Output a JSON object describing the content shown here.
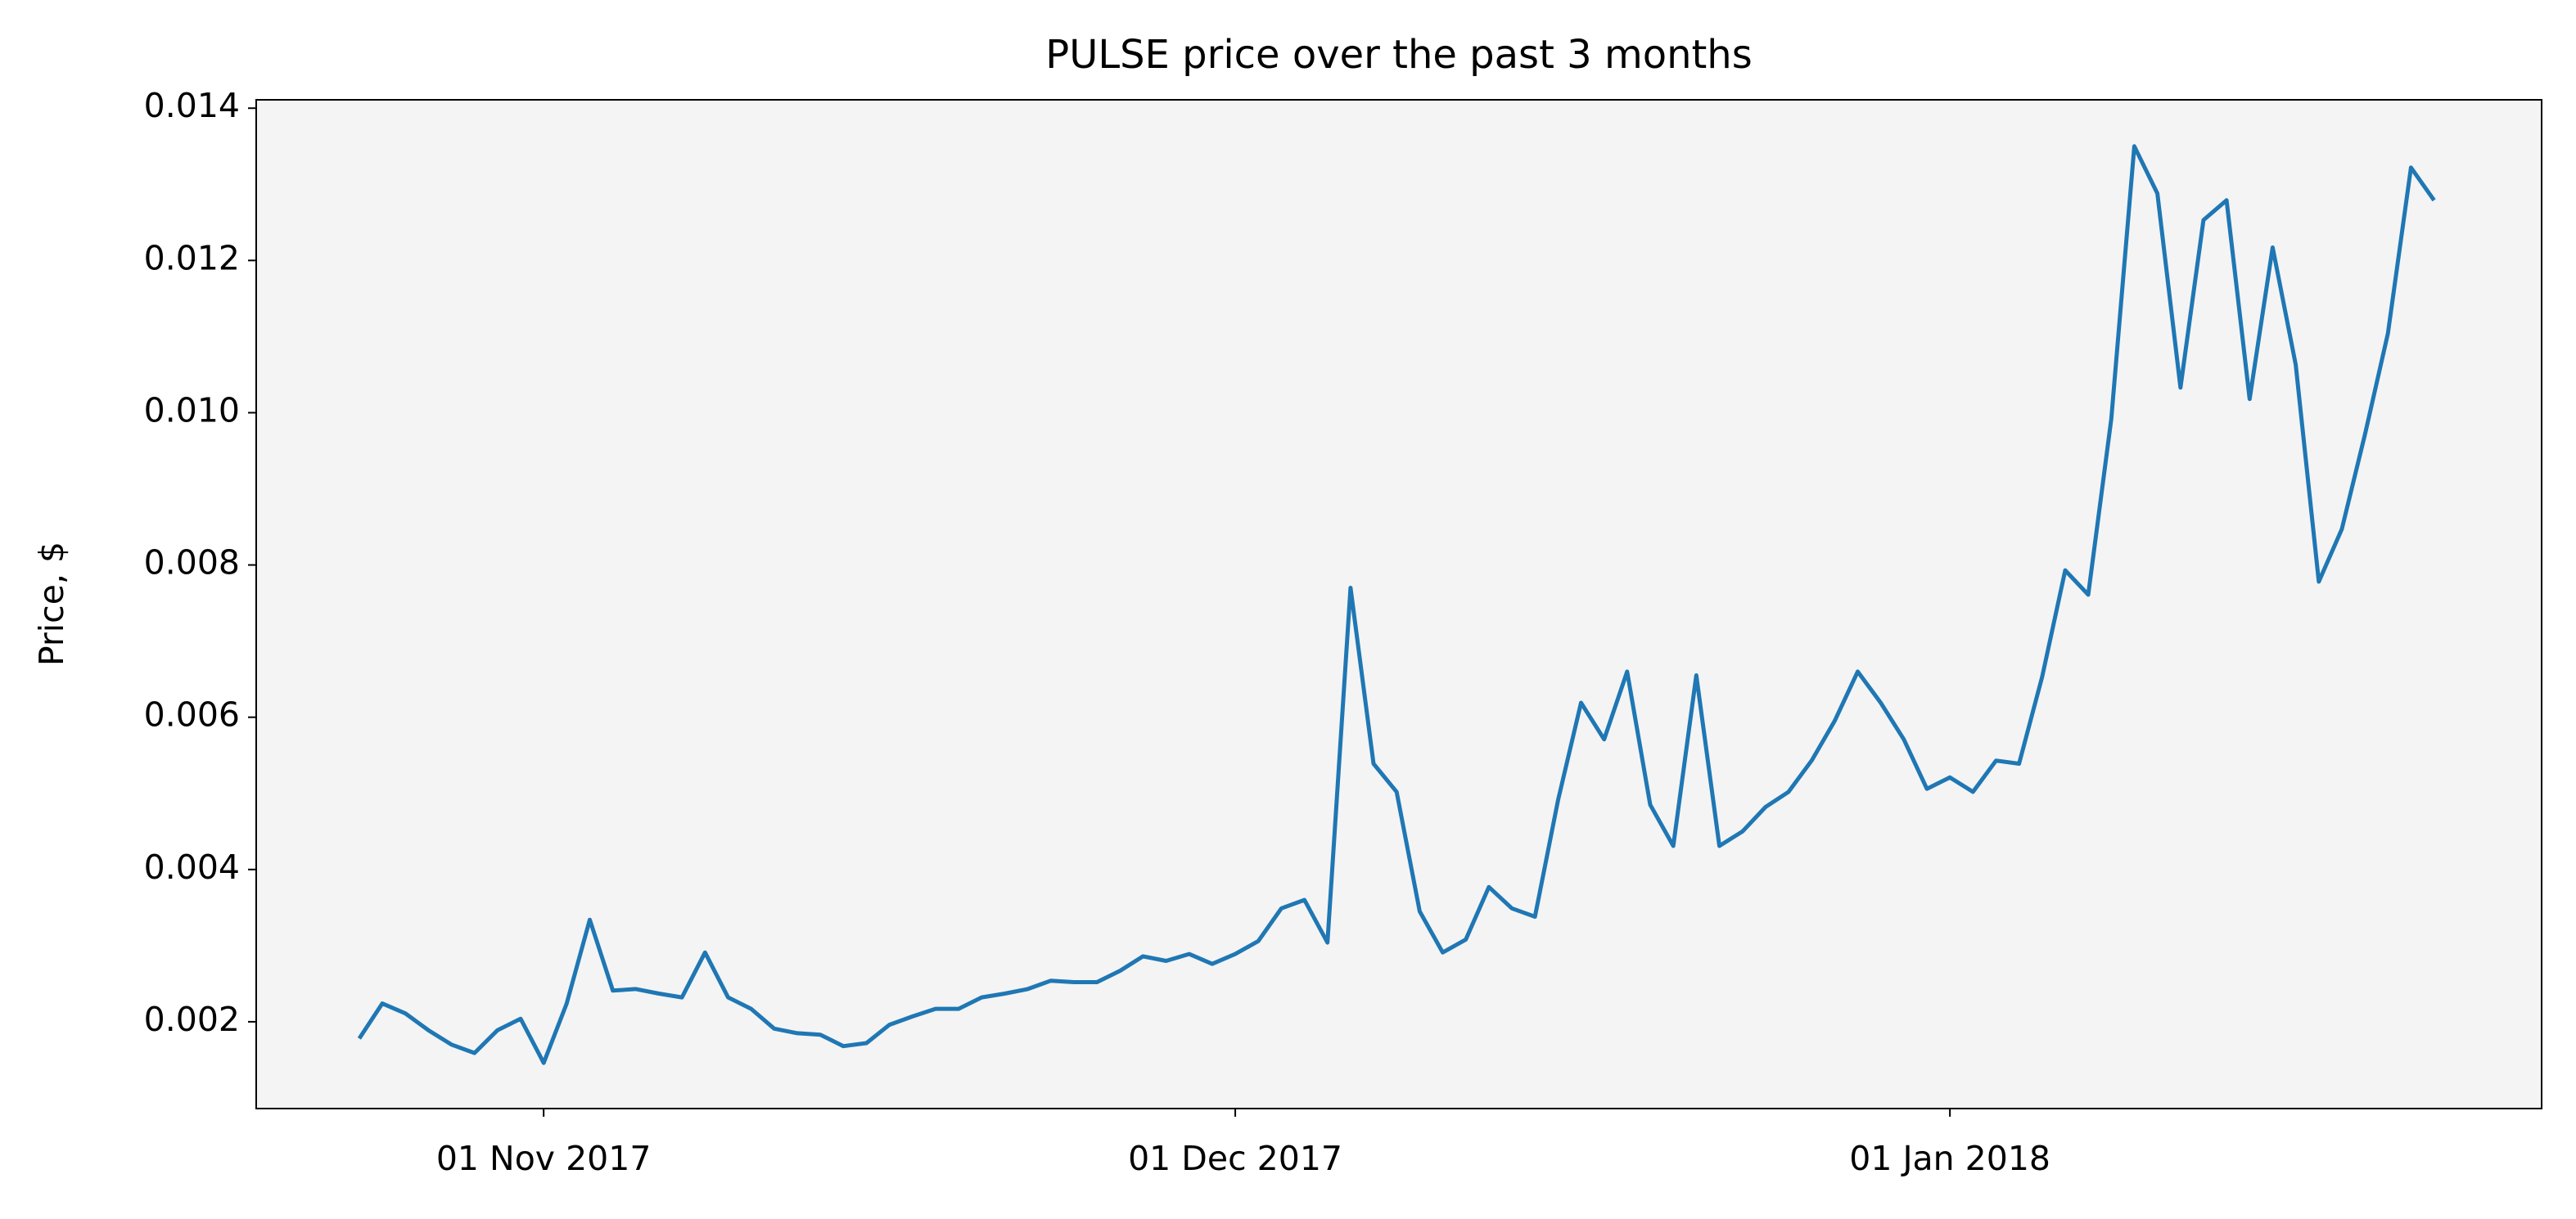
{
  "chart_data": {
    "type": "line",
    "title": "PULSE price over the past 3 months",
    "ylabel": "Price, $",
    "x": [
      "2017-10-24",
      "2017-10-25",
      "2017-10-26",
      "2017-10-27",
      "2017-10-28",
      "2017-10-29",
      "2017-10-30",
      "2017-10-31",
      "2017-11-01",
      "2017-11-02",
      "2017-11-03",
      "2017-11-04",
      "2017-11-05",
      "2017-11-06",
      "2017-11-07",
      "2017-11-08",
      "2017-11-09",
      "2017-11-10",
      "2017-11-11",
      "2017-11-12",
      "2017-11-13",
      "2017-11-14",
      "2017-11-15",
      "2017-11-16",
      "2017-11-17",
      "2017-11-18",
      "2017-11-19",
      "2017-11-20",
      "2017-11-21",
      "2017-11-22",
      "2017-11-23",
      "2017-11-24",
      "2017-11-25",
      "2017-11-26",
      "2017-11-27",
      "2017-11-28",
      "2017-11-29",
      "2017-11-30",
      "2017-12-01",
      "2017-12-02",
      "2017-12-03",
      "2017-12-04",
      "2017-12-05",
      "2017-12-06",
      "2017-12-07",
      "2017-12-08",
      "2017-12-09",
      "2017-12-10",
      "2017-12-11",
      "2017-12-12",
      "2017-12-13",
      "2017-12-14",
      "2017-12-15",
      "2017-12-16",
      "2017-12-17",
      "2017-12-18",
      "2017-12-19",
      "2017-12-20",
      "2017-12-21",
      "2017-12-22",
      "2017-12-23",
      "2017-12-24",
      "2017-12-25",
      "2017-12-26",
      "2017-12-27",
      "2017-12-28",
      "2017-12-29",
      "2017-12-30",
      "2017-12-31",
      "2018-01-01",
      "2018-01-02",
      "2018-01-03",
      "2018-01-04",
      "2018-01-05",
      "2018-01-06",
      "2018-01-07",
      "2018-01-08",
      "2018-01-09",
      "2018-01-10",
      "2018-01-11",
      "2018-01-12",
      "2018-01-13",
      "2018-01-14",
      "2018-01-15",
      "2018-01-16",
      "2018-01-17",
      "2018-01-18",
      "2018-01-19",
      "2018-01-20",
      "2018-01-21",
      "2018-01-22"
    ],
    "series": [
      {
        "name": "PULSE",
        "color": "#1f77b4",
        "values": [
          0.00178,
          0.00224,
          0.00211,
          0.00189,
          0.0017,
          0.00159,
          0.00189,
          0.00204,
          0.00146,
          0.00224,
          0.00334,
          0.00241,
          0.00243,
          0.00237,
          0.00232,
          0.00291,
          0.00232,
          0.00217,
          0.00191,
          0.00185,
          0.00183,
          0.00168,
          0.00172,
          0.00196,
          0.00207,
          0.00217,
          0.00217,
          0.00232,
          0.00237,
          0.00243,
          0.00254,
          0.00252,
          0.00252,
          0.00267,
          0.00286,
          0.0028,
          0.00289,
          0.00276,
          0.00289,
          0.00306,
          0.00349,
          0.0036,
          0.00304,
          0.0077,
          0.00539,
          0.00502,
          0.00345,
          0.00291,
          0.00308,
          0.00377,
          0.00349,
          0.00338,
          0.00491,
          0.00619,
          0.00571,
          0.0066,
          0.00485,
          0.00431,
          0.00655,
          0.00431,
          0.0045,
          0.00482,
          0.00502,
          0.00543,
          0.00595,
          0.0066,
          0.00619,
          0.00571,
          0.00506,
          0.00521,
          0.00502,
          0.00543,
          0.00539,
          0.00653,
          0.00793,
          0.00761,
          0.00992,
          0.0135,
          0.01288,
          0.01033,
          0.01253,
          0.01279,
          0.01018,
          0.01217,
          0.01063,
          0.00778,
          0.00847,
          0.00971,
          0.01104,
          0.01322,
          0.01279
        ]
      }
    ],
    "xlim": [
      "2017-10-19T12:45:00Z",
      "2018-01-26T16:00:00Z"
    ],
    "xticks": [
      {
        "value": "2017-11-01",
        "label": "01 Nov 2017"
      },
      {
        "value": "2017-12-01",
        "label": "01 Dec 2017"
      },
      {
        "value": "2018-01-01",
        "label": "01 Jan 2018"
      }
    ],
    "ylim": [
      0.00086,
      0.01411
    ],
    "yticks": [
      0.002,
      0.004,
      0.006,
      0.008,
      {
        "value": 0.01,
        "label": "0.010"
      },
      0.012,
      0.014
    ],
    "background": "#f4f4f4"
  }
}
